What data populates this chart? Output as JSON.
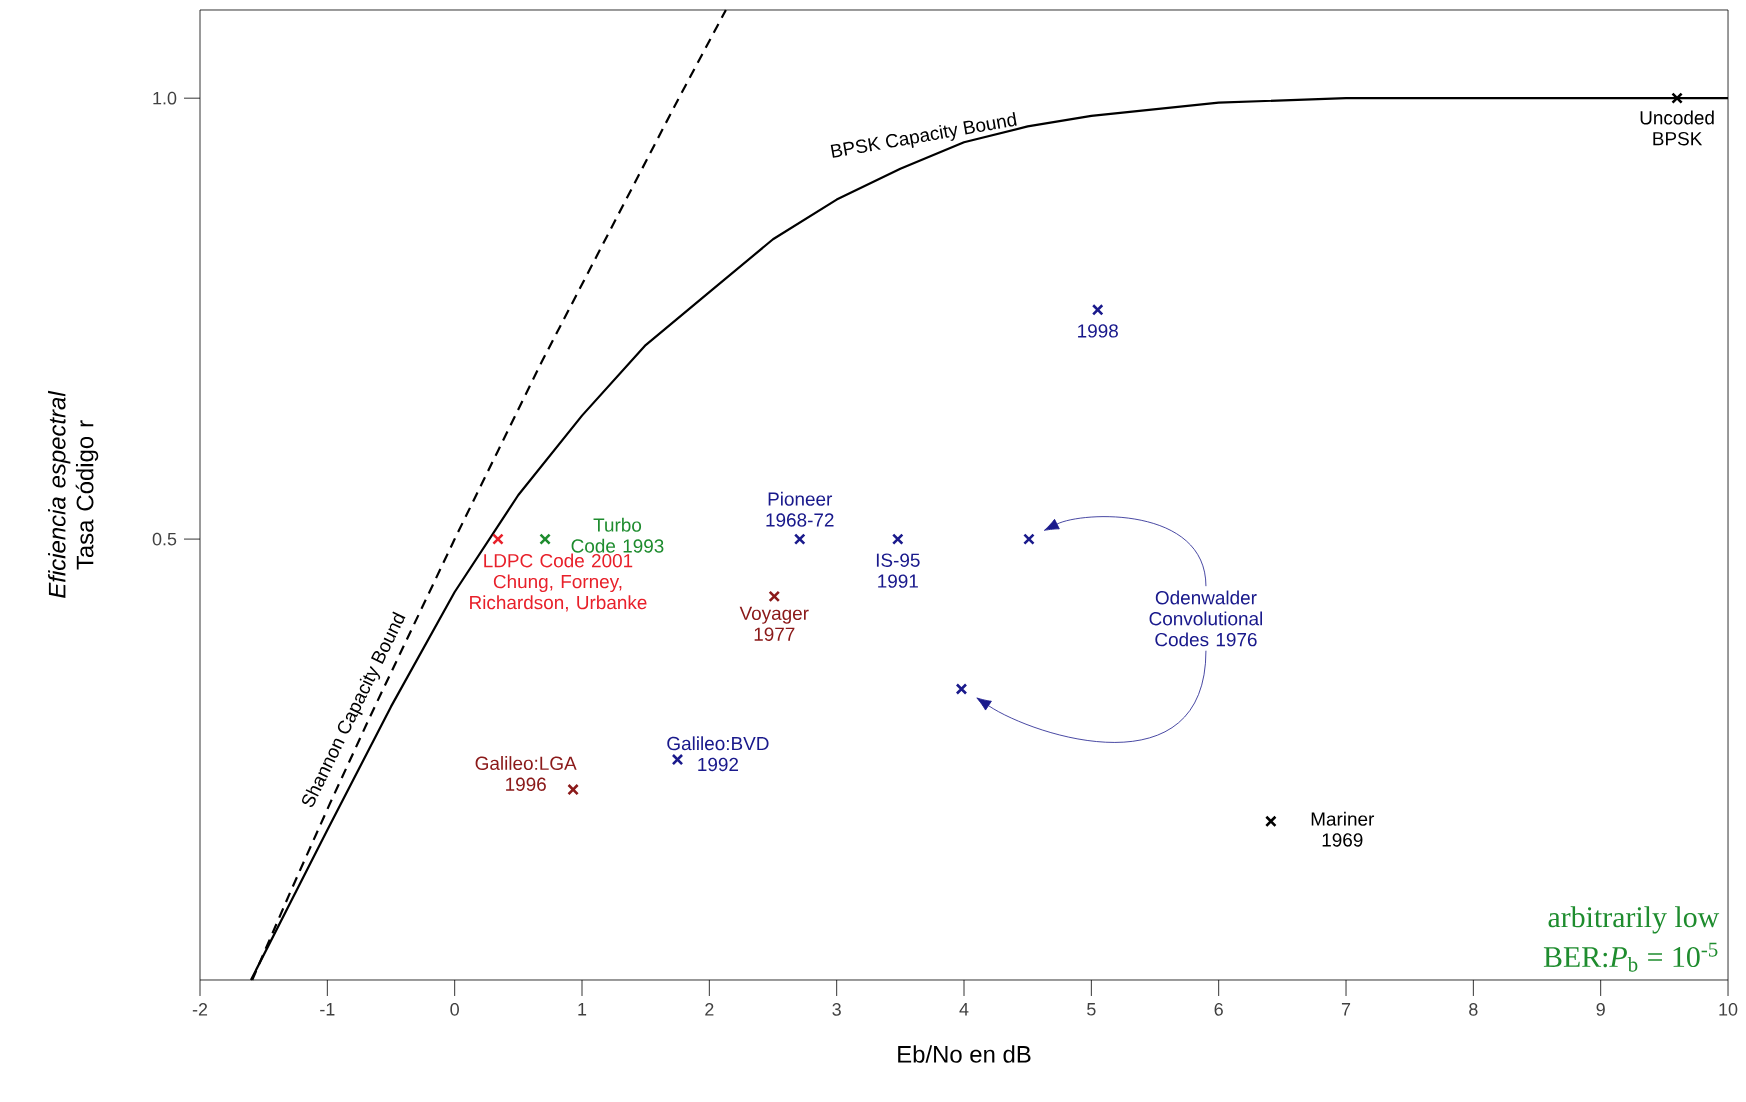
{
  "chart_data": {
    "type": "scatter",
    "xlabel": "Eb/No en dB",
    "ylabel": "*Eficiencia espectral* Tasa Código r",
    "xlim": [
      -2,
      10
    ],
    "ylim": [
      0,
      1.1
    ],
    "xticks": [
      -2,
      -1,
      0,
      1,
      2,
      3,
      4,
      5,
      6,
      7,
      8,
      9,
      10
    ],
    "yticks": [
      {
        "value": 0.5,
        "label": "0.5"
      },
      {
        "value": 1,
        "label": "1.0"
      }
    ],
    "grid": false,
    "marker": "cross",
    "series": [
      {
        "color": "#000000",
        "x": [
          9.6,
          6.41
        ],
        "values": [
          1.0,
          0.18
        ]
      },
      {
        "color": "#1a1a8c",
        "x": [
          5.05,
          3.48,
          4.51,
          3.98,
          2.71,
          1.75
        ],
        "values": [
          0.76,
          0.5,
          0.5,
          0.33,
          0.5,
          0.25
        ]
      },
      {
        "color": "#8b1a1a",
        "x": [
          2.51,
          0.93
        ],
        "values": [
          0.435,
          0.216
        ]
      },
      {
        "color": "#e8202a",
        "x": [
          0.34
        ],
        "values": [
          0.5
        ]
      },
      {
        "color": "#1e8c2e",
        "x": [
          0.71
        ],
        "values": [
          0.5
        ]
      },
      {
        "type": "line",
        "color": "#000000",
        "line_style": "dashed",
        "marker": "none",
        "x": [
          -1.59,
          -1.29,
          -0.98,
          -0.66,
          -0.33,
          0,
          0.34,
          0.68,
          1.04,
          1.4,
          1.76,
          2.13
        ],
        "values": [
          0,
          0.1,
          0.2,
          0.3,
          0.4,
          0.5,
          0.6,
          0.7,
          0.8,
          0.9,
          1.0,
          1.1
        ]
      },
      {
        "type": "line",
        "color": "#000000",
        "line_style": "solid",
        "marker": "none",
        "x": [
          -1.6,
          -1.0,
          -0.5,
          0,
          0.5,
          1.0,
          1.5,
          2.0,
          2.5,
          3.0,
          3.5,
          4.0,
          4.5,
          5,
          6,
          7,
          10
        ],
        "values": [
          0,
          0.17,
          0.31,
          0.44,
          0.55,
          0.64,
          0.72,
          0.78,
          0.84,
          0.885,
          0.92,
          0.95,
          0.968,
          0.98,
          0.995,
          1.0,
          1.0
        ]
      }
    ],
    "annotations": [
      {
        "text": "Uncoded BPSK",
        "x": 9.6,
        "y": 1.0
      },
      {
        "text": "1998",
        "x": 5.05,
        "y": 0.76
      },
      {
        "text": "IS-95 1991",
        "x": 3.48,
        "y": 0.5
      },
      {
        "text": "Pioneer 1968-72",
        "x": 2.71,
        "y": 0.5
      },
      {
        "text": "Voyager 1977",
        "x": 2.51,
        "y": 0.435
      },
      {
        "text": "Turbo Code 1993",
        "x": 0.71,
        "y": 0.5
      },
      {
        "text": "LDPC Code 2001 Chung, Forney, Richardson, Urbanke",
        "x": 0.34,
        "y": 0.5
      },
      {
        "text": "Galileo:LGA 1996",
        "x": 0.93,
        "y": 0.216
      },
      {
        "text": "Galileo:BVD 1992",
        "x": 1.75,
        "y": 0.25
      },
      {
        "text": "Mariner 1969",
        "x": 6.41,
        "y": 0.18
      },
      "Odenwalder Convolutional Codes 1976",
      {
        "text": "Shannon Capacity Bound",
        "x": -0.66,
        "y": 0.3
      },
      {
        "text": "BPSK Capacity Bound",
        "x": 3.7,
        "y": 0.93
      },
      "arbitrarily low",
      "BER:*P*$_{b}$ = 10$^{-5}$"
    ]
  }
}
